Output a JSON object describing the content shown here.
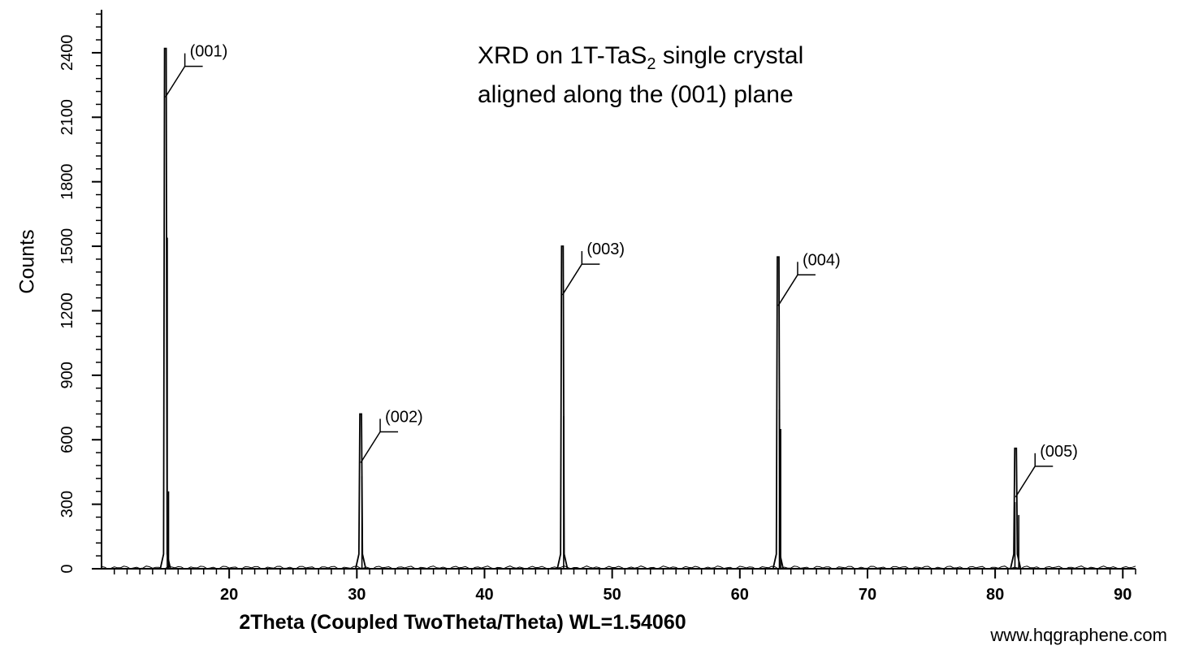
{
  "chart_data": {
    "type": "line",
    "title_main": "XRD on 1T-TaS",
    "title_sub": "2",
    "title_rest": " single crystal",
    "title_line2": "aligned along the (001) plane",
    "xlabel": "2Theta (Coupled TwoTheta/Theta) WL=1.54060",
    "ylabel": "Counts",
    "xlim": [
      10,
      91
    ],
    "ylim": [
      0,
      2600
    ],
    "x_ticks": [
      20,
      30,
      40,
      50,
      60,
      70,
      80,
      90
    ],
    "x_tick_labels": [
      "20",
      "30",
      "40",
      "50",
      "60",
      "70",
      "80",
      "90"
    ],
    "y_ticks": [
      0,
      300,
      600,
      900,
      1200,
      1500,
      1800,
      2100,
      2400
    ],
    "y_tick_labels": [
      "0",
      "300",
      "600",
      "900",
      "1200",
      "1500",
      "1800",
      "2100",
      "2400"
    ],
    "grid": false,
    "peaks": [
      {
        "label": "(001)",
        "x": 15.0,
        "y": 2420
      },
      {
        "label": "(002)",
        "x": 30.3,
        "y": 720
      },
      {
        "label": "(003)",
        "x": 46.1,
        "y": 1500
      },
      {
        "label": "(004)",
        "x": 63.0,
        "y": 1450
      },
      {
        "label": "(005)",
        "x": 81.6,
        "y": 560
      }
    ],
    "minor_lines": [
      {
        "x": 15.15,
        "y": 1540
      },
      {
        "x": 15.25,
        "y": 360
      },
      {
        "x": 30.4,
        "y": 430
      },
      {
        "x": 46.2,
        "y": 710
      },
      {
        "x": 63.1,
        "y": 740
      },
      {
        "x": 63.2,
        "y": 650
      },
      {
        "x": 81.55,
        "y": 310
      },
      {
        "x": 81.85,
        "y": 250
      }
    ],
    "color": "#000000"
  },
  "watermark": "www.hqgraphene.com"
}
